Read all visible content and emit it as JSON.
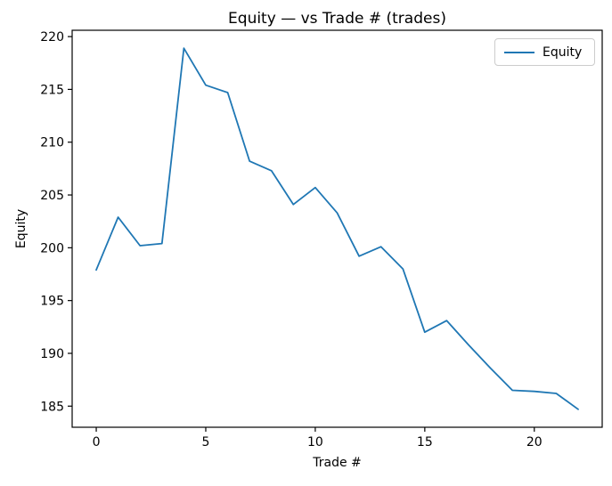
{
  "figure": {
    "background": "#ffffff",
    "axis_color": "#000000"
  },
  "chart_data": {
    "type": "line",
    "title": "Equity — vs Trade # (trades)",
    "xlabel": "Trade #",
    "ylabel": "Equity",
    "x": [
      0,
      1,
      2,
      3,
      4,
      5,
      6,
      7,
      8,
      9,
      10,
      11,
      12,
      13,
      14,
      15,
      16,
      17,
      18,
      19,
      20,
      21,
      22
    ],
    "series": [
      {
        "name": "Equity",
        "color": "#1f77b4",
        "values": [
          197.9,
          202.9,
          200.2,
          200.4,
          218.9,
          215.4,
          214.7,
          208.2,
          207.3,
          204.1,
          205.7,
          203.3,
          199.2,
          200.1,
          198.0,
          192.0,
          193.1,
          190.8,
          188.6,
          186.5,
          186.4,
          186.2,
          184.7
        ]
      }
    ],
    "xlim": [
      -1.1,
      23.1
    ],
    "ylim": [
      183.0,
      220.6
    ],
    "xticks": [
      0,
      5,
      10,
      15,
      20
    ],
    "yticks": [
      185,
      190,
      195,
      200,
      205,
      210,
      215,
      220
    ],
    "grid": false,
    "legend": {
      "position": "upper right",
      "entries": [
        "Equity"
      ]
    }
  }
}
